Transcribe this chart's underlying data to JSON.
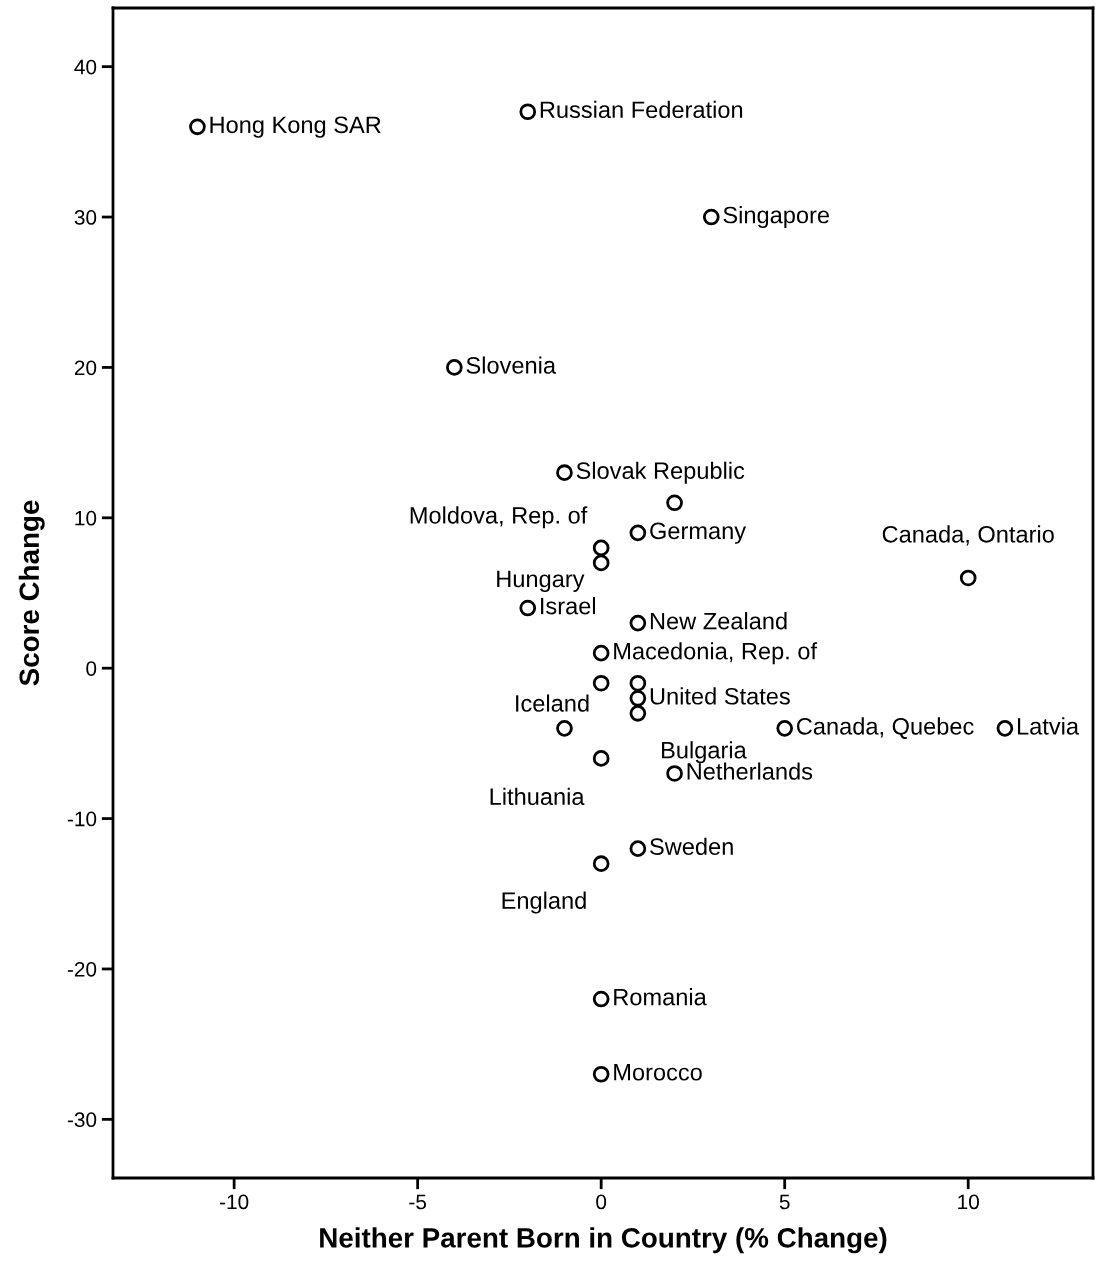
{
  "chart_data": {
    "type": "scatter",
    "xlabel": "Neither Parent Born in Country (% Change)",
    "ylabel": "Score Change",
    "xlim": [
      -13.3,
      13.4
    ],
    "ylim": [
      -33.9,
      43.9
    ],
    "xticks": [
      -10,
      -5,
      0,
      5,
      10
    ],
    "yticks": [
      -30,
      -20,
      -10,
      0,
      10,
      20,
      30,
      40
    ],
    "grid": false,
    "legend": false,
    "marker": "circle",
    "series": [
      {
        "color": "#000000",
        "x": [
          -11,
          -2,
          3,
          -4,
          -1,
          2,
          1,
          0,
          0,
          10,
          -2,
          1,
          0,
          0,
          1,
          1,
          1,
          -1,
          0,
          5,
          11,
          2,
          1,
          0,
          0,
          0
        ],
        "values": [
          36,
          37,
          30,
          20,
          13,
          11,
          9,
          8,
          7,
          6,
          4,
          3,
          1,
          -1,
          -1,
          -2,
          -3,
          -4,
          -6,
          -4,
          -4,
          -7,
          -12,
          -13,
          -22,
          -27
        ]
      }
    ],
    "annotations": [
      {
        "text": "Hong Kong SAR",
        "x": -11,
        "y": 36
      },
      {
        "text": "Russian Federation",
        "x": -2,
        "y": 37
      },
      {
        "text": "Singapore",
        "x": 3,
        "y": 30
      },
      {
        "text": "Slovenia",
        "x": -4,
        "y": 20
      },
      {
        "text": "Slovak Republic",
        "x": -1,
        "y": 13
      },
      {
        "text": "Moldova, Rep. of",
        "x": 0,
        "y": 8
      },
      {
        "text": "Germany",
        "x": 1,
        "y": 9
      },
      {
        "text": "Canada, Ontario",
        "x": 10,
        "y": 6
      },
      {
        "text": "Hungary",
        "x": 0,
        "y": 7
      },
      {
        "text": "Israel",
        "x": -2,
        "y": 4
      },
      {
        "text": "New Zealand",
        "x": 1,
        "y": 3
      },
      {
        "text": "Macedonia, Rep. of",
        "x": 0,
        "y": 1
      },
      {
        "text": "Iceland",
        "x": 0,
        "y": -1
      },
      {
        "text": "United States",
        "x": 1,
        "y": -2
      },
      {
        "text": "Canada, Quebec",
        "x": 5,
        "y": -4
      },
      {
        "text": "Latvia",
        "x": 11,
        "y": -4
      },
      {
        "text": "Bulgaria",
        "x": 1,
        "y": -3
      },
      {
        "text": "Lithuania",
        "x": 0,
        "y": -6
      },
      {
        "text": "Netherlands",
        "x": 2,
        "y": -7
      },
      {
        "text": "Sweden",
        "x": 1,
        "y": -12
      },
      {
        "text": "England",
        "x": 0,
        "y": -13
      },
      {
        "text": "Romania",
        "x": 0,
        "y": -22
      },
      {
        "text": "Morocco",
        "x": 0,
        "y": -27
      }
    ]
  }
}
